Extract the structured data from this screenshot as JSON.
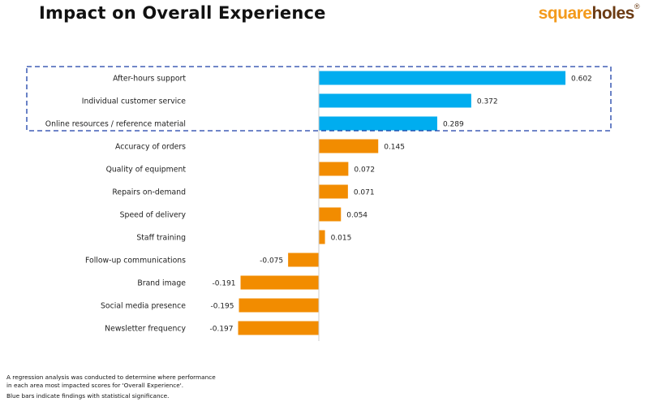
{
  "header": {
    "title": "Impact on Overall Experience",
    "logo": {
      "part1": "square",
      "part2": "holes",
      "mark": "®"
    }
  },
  "footnote": {
    "line1": "A regression analysis was conducted to determine where performance",
    "line2": "in each area most impacted scores for 'Overall Experience'.",
    "line3": "Blue bars indicate findings with statistical significance."
  },
  "colors": {
    "significant": "#00adef",
    "not_significant": "#f28c00",
    "highlight_box": "#1a3fa8",
    "axis": "#cccccc"
  },
  "chart_data": {
    "type": "bar",
    "orientation": "horizontal",
    "title": "Impact on Overall Experience",
    "xlabel": "",
    "ylabel": "",
    "grid": false,
    "legend": "none",
    "xlim": [
      -0.2,
      0.65
    ],
    "categories": [
      "After-hours support",
      "Individual customer service",
      "Online resources / reference material",
      "Accuracy of orders",
      "Quality of equipment",
      "Repairs on-demand",
      "Speed of delivery",
      "Staff training",
      "Follow-up communications",
      "Brand image",
      "Social media presence",
      "Newsletter frequency"
    ],
    "values": [
      0.602,
      0.372,
      0.289,
      0.145,
      0.072,
      0.071,
      0.054,
      0.015,
      -0.075,
      -0.191,
      -0.195,
      -0.197
    ],
    "labels": [
      "0.602",
      "0.372",
      "0.289",
      "0.145",
      "0.072",
      "0.071",
      "0.054",
      "0.015",
      "-0.075",
      "-0.191",
      "-0.195",
      "-0.197"
    ],
    "significant": [
      true,
      true,
      true,
      false,
      false,
      false,
      false,
      false,
      false,
      false,
      false,
      false
    ],
    "annotations": [
      "Dashed box highlights statistically significant items"
    ]
  }
}
